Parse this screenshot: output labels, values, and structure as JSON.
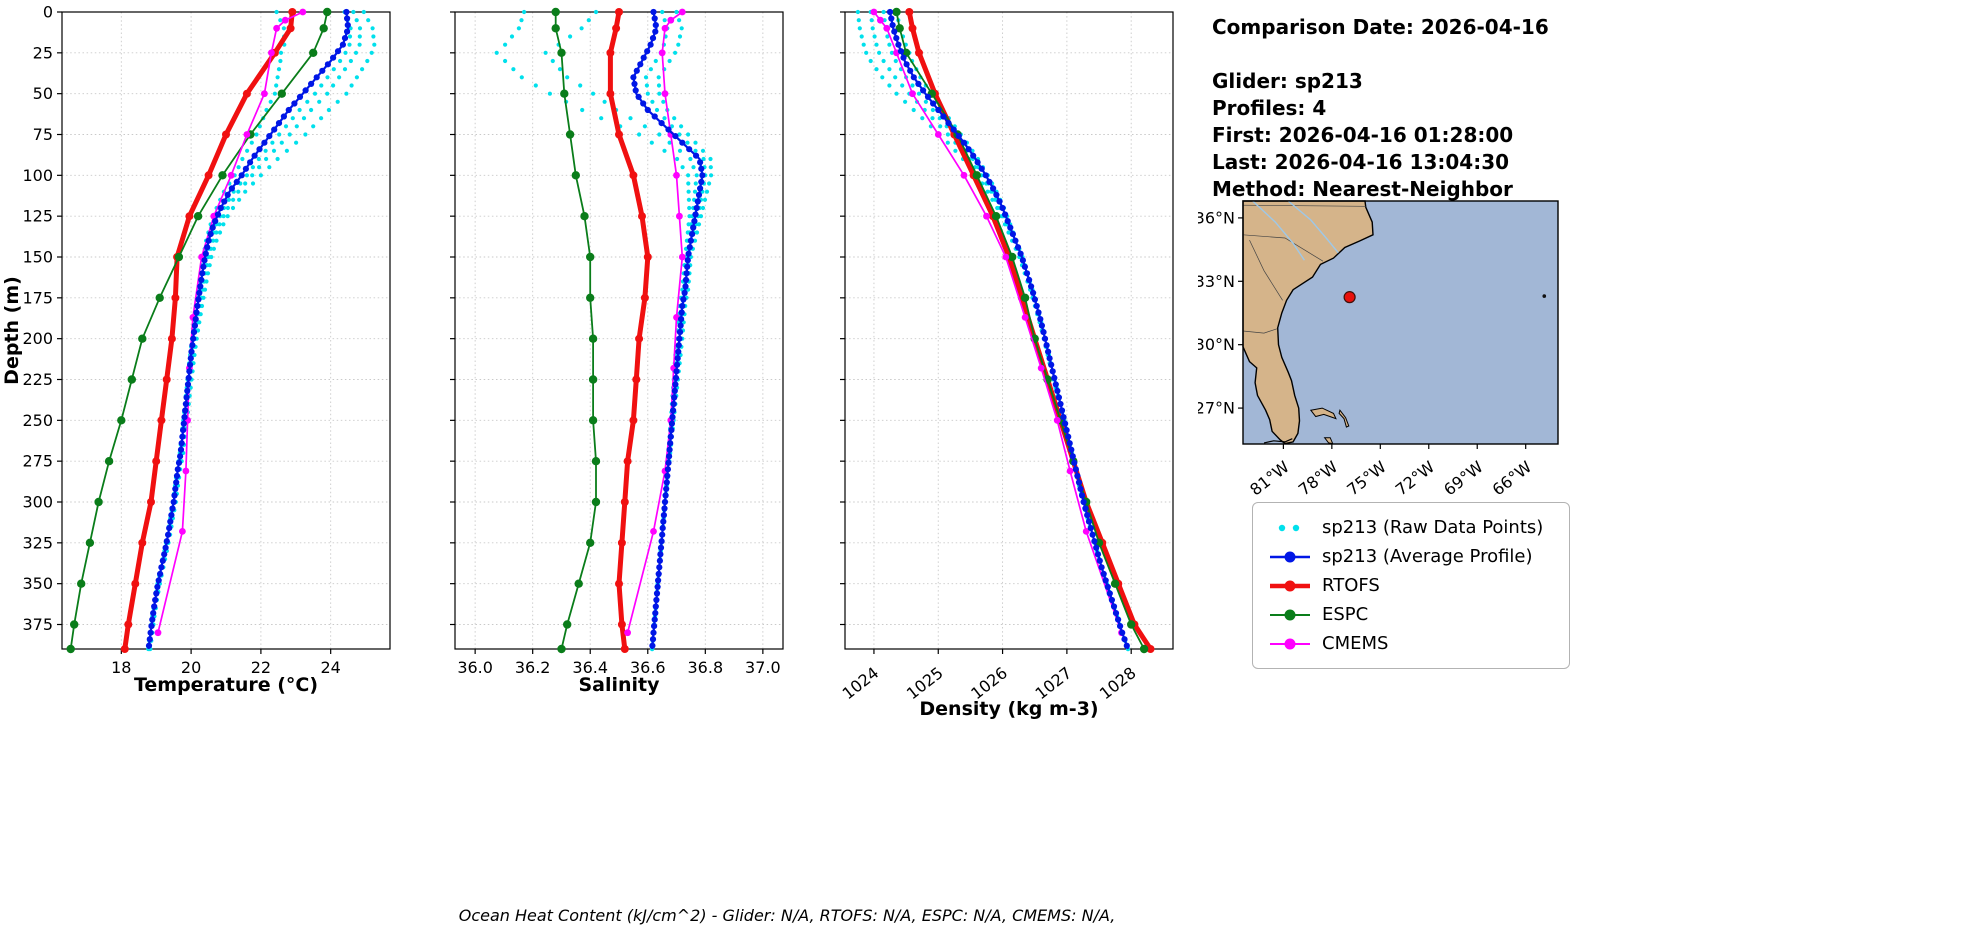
{
  "info": {
    "lines": [
      "Comparison Date: 2026-04-16",
      "Glider: sp213",
      "Profiles: 4",
      "First: 2026-04-16 01:28:00",
      "Last: 2026-04-16 13:04:30",
      "Method: Nearest-Neighbor"
    ]
  },
  "footer": {
    "ocean_heat_note": "Ocean Heat Content (kJ/cm^2) - Glider: N/A,  RTOFS: N/A,  ESPC: N/A,  CMEMS: N/A,"
  },
  "legend": {
    "items": [
      {
        "id": "raw",
        "label": "sp213 (Raw Data Points)",
        "color": "#00E0EC",
        "style": "dots"
      },
      {
        "id": "avg",
        "label": "sp213 (Average Profile)",
        "color": "#0016E6",
        "style": "line-dot",
        "lw": 2.5
      },
      {
        "id": "rtofs",
        "label": "RTOFS",
        "color": "#F01010",
        "style": "line-dot",
        "lw": 4.5
      },
      {
        "id": "espc",
        "label": "ESPC",
        "color": "#0A7D1A",
        "style": "line-dot",
        "lw": 2
      },
      {
        "id": "cmems",
        "label": "CMEMS",
        "color": "#FF00FF",
        "style": "line-dot",
        "lw": 2
      }
    ]
  },
  "chart_data": {
    "type": "line",
    "orientation": "vertical-profile",
    "depth_axis": {
      "label": "Depth (m)",
      "ticks": [
        0,
        25,
        50,
        75,
        100,
        125,
        150,
        175,
        200,
        225,
        250,
        275,
        300,
        325,
        350,
        375
      ],
      "lim": [
        0,
        390
      ]
    },
    "depth_grid": [
      0,
      10,
      20,
      30,
      40,
      50,
      60,
      70,
      80,
      90,
      100,
      110,
      120,
      130,
      140,
      150,
      160,
      170,
      180,
      190,
      200,
      210,
      220,
      230,
      240,
      250,
      260,
      270,
      280,
      290,
      300,
      310,
      320,
      330,
      340,
      350,
      360,
      370,
      380,
      390
    ],
    "model_depths": [
      0,
      10,
      25,
      50,
      75,
      100,
      125,
      150,
      175,
      200,
      225,
      250,
      275,
      300,
      325,
      350,
      375,
      390
    ],
    "cmems_depths": [
      0,
      5,
      10,
      25,
      50,
      75,
      100,
      125,
      150,
      187,
      218,
      250,
      281,
      318,
      380
    ],
    "raw_offset_depths": [
      0,
      25,
      50,
      75,
      100,
      125,
      150,
      200,
      300,
      390
    ],
    "plots": [
      {
        "id": "temperature",
        "xlabel": "Temperature (°C)",
        "xlim": [
          16.3,
          25.7
        ],
        "xticks": [
          18,
          20,
          22,
          24
        ],
        "xtick_labels": [
          "18",
          "20",
          "22",
          "24"
        ],
        "rotate_xtick_labels": false,
        "series": {
          "avg": {
            "depths": "grid",
            "values": [
              24.45,
              24.5,
              24.35,
              24.0,
              23.6,
              23.2,
              22.8,
              22.45,
              22.1,
              21.75,
              21.45,
              21.1,
              20.85,
              20.65,
              20.5,
              20.4,
              20.32,
              20.25,
              20.18,
              20.12,
              20.06,
              20.0,
              19.95,
              19.9,
              19.85,
              19.8,
              19.75,
              19.7,
              19.62,
              19.56,
              19.5,
              19.42,
              19.34,
              19.25,
              19.15,
              19.05,
              18.97,
              18.9,
              18.84,
              18.78
            ]
          },
          "rtofs": {
            "depths": "model",
            "values": [
              22.9,
              22.85,
              22.4,
              21.6,
              21.0,
              20.5,
              19.95,
              19.6,
              19.55,
              19.45,
              19.3,
              19.15,
              19.0,
              18.85,
              18.6,
              18.4,
              18.2,
              18.1
            ]
          },
          "espc": {
            "depths": "model",
            "values": [
              23.9,
              23.8,
              23.5,
              22.6,
              21.7,
              20.9,
              20.2,
              19.65,
              19.1,
              18.6,
              18.3,
              18.0,
              17.65,
              17.35,
              17.1,
              16.85,
              16.65,
              16.55
            ]
          },
          "cmems": {
            "depths": "cmems",
            "values": [
              23.2,
              22.7,
              22.45,
              22.3,
              22.1,
              21.6,
              21.15,
              20.65,
              20.3,
              20.05,
              19.95,
              19.9,
              19.85,
              19.75,
              19.05
            ]
          },
          "raw_offsets": [
            [
              0.5,
              1.0,
              1.25,
              1.0,
              0.55,
              0.3,
              0.18,
              0.1,
              0.06,
              0.05
            ],
            [
              0.2,
              0.55,
              0.7,
              0.55,
              0.3,
              0.18,
              0.1,
              0.06,
              0.04,
              0.03
            ],
            [
              -0.05,
              0.25,
              0.35,
              0.25,
              0.15,
              0.08,
              0.05,
              0.03,
              0.02,
              0.01
            ],
            [
              -2.0,
              -1.6,
              -0.8,
              -0.4,
              -0.2,
              -0.1,
              -0.05,
              -0.03,
              -0.02,
              -0.01
            ]
          ]
        }
      },
      {
        "id": "salinity",
        "xlabel": "Salinity",
        "xlim": [
          35.93,
          37.07
        ],
        "xticks": [
          36.0,
          36.2,
          36.4,
          36.6,
          36.8,
          37.0
        ],
        "xtick_labels": [
          "36.0",
          "36.2",
          "36.4",
          "36.6",
          "36.8",
          "37.0"
        ],
        "rotate_xtick_labels": false,
        "series": {
          "avg": {
            "depths": "grid",
            "values": [
              36.62,
              36.63,
              36.61,
              36.58,
              36.55,
              36.56,
              36.6,
              36.66,
              36.72,
              36.78,
              36.79,
              36.78,
              36.77,
              36.76,
              36.75,
              36.74,
              36.735,
              36.73,
              36.72,
              36.715,
              36.71,
              36.705,
              36.7,
              36.695,
              36.69,
              36.685,
              36.68,
              36.675,
              36.67,
              36.665,
              36.66,
              36.655,
              36.65,
              36.645,
              36.64,
              36.635,
              36.63,
              36.625,
              36.62,
              36.615
            ]
          },
          "rtofs": {
            "depths": "model",
            "values": [
              36.5,
              36.49,
              36.47,
              36.47,
              36.5,
              36.55,
              36.58,
              36.6,
              36.59,
              36.57,
              36.56,
              36.55,
              36.53,
              36.52,
              36.51,
              36.5,
              36.51,
              36.52
            ]
          },
          "espc": {
            "depths": "model",
            "values": [
              36.28,
              36.28,
              36.3,
              36.31,
              36.33,
              36.35,
              36.38,
              36.4,
              36.4,
              36.41,
              36.41,
              36.41,
              36.42,
              36.42,
              36.4,
              36.36,
              36.32,
              36.3
            ]
          },
          "cmems": {
            "depths": "cmems",
            "values": [
              36.72,
              36.68,
              36.66,
              36.65,
              36.66,
              36.68,
              36.7,
              36.71,
              36.72,
              36.7,
              36.69,
              36.68,
              36.66,
              36.62,
              36.53
            ]
          },
          "raw_offsets": [
            [
              0.08,
              0.1,
              0.08,
              0.05,
              0.03,
              0.02,
              0.01,
              0.01,
              0.0,
              0.0
            ],
            [
              0.03,
              0.05,
              0.04,
              0.02,
              0.01,
              0.01,
              0.0,
              0.0,
              0.0,
              0.0
            ],
            [
              -0.2,
              -0.35,
              -0.15,
              -0.05,
              -0.02,
              -0.01,
              -0.01,
              0.0,
              0.0,
              0.0
            ],
            [
              -0.45,
              -0.52,
              -0.3,
              -0.12,
              -0.05,
              -0.02,
              -0.01,
              -0.01,
              0.0,
              0.0
            ]
          ]
        }
      },
      {
        "id": "density",
        "xlabel": "Density (kg m-3)",
        "xlim": [
          1023.55,
          1028.65
        ],
        "xticks": [
          1024,
          1025,
          1026,
          1027,
          1028
        ],
        "xtick_labels": [
          "1024",
          "1025",
          "1026",
          "1027",
          "1028"
        ],
        "rotate_xtick_labels": true,
        "series": {
          "avg": {
            "depths": "grid",
            "values": [
              1024.25,
              1024.3,
              1024.38,
              1024.48,
              1024.62,
              1024.8,
              1025.0,
              1025.2,
              1025.4,
              1025.58,
              1025.74,
              1025.88,
              1026.0,
              1026.1,
              1026.2,
              1026.3,
              1026.38,
              1026.46,
              1026.53,
              1026.6,
              1026.66,
              1026.72,
              1026.78,
              1026.84,
              1026.9,
              1026.96,
              1027.02,
              1027.08,
              1027.14,
              1027.2,
              1027.26,
              1027.33,
              1027.4,
              1027.47,
              1027.54,
              1027.62,
              1027.7,
              1027.78,
              1027.86,
              1027.95
            ]
          },
          "rtofs": {
            "depths": "model",
            "values": [
              1024.55,
              1024.6,
              1024.7,
              1024.95,
              1025.25,
              1025.55,
              1025.85,
              1026.1,
              1026.3,
              1026.5,
              1026.7,
              1026.9,
              1027.1,
              1027.3,
              1027.55,
              1027.8,
              1028.05,
              1028.3
            ]
          },
          "espc": {
            "depths": "model",
            "values": [
              1024.35,
              1024.4,
              1024.5,
              1024.9,
              1025.3,
              1025.6,
              1025.9,
              1026.15,
              1026.35,
              1026.5,
              1026.7,
              1026.9,
              1027.1,
              1027.3,
              1027.5,
              1027.75,
              1028.0,
              1028.2
            ]
          },
          "cmems": {
            "depths": "cmems",
            "values": [
              1024.0,
              1024.1,
              1024.2,
              1024.35,
              1024.6,
              1025.0,
              1025.4,
              1025.75,
              1026.05,
              1026.35,
              1026.6,
              1026.85,
              1027.05,
              1027.3,
              1027.85
            ]
          },
          "raw_offsets": [
            [
              -0.5,
              -0.55,
              -0.45,
              -0.28,
              -0.14,
              -0.07,
              -0.04,
              -0.02,
              -0.01,
              0.0
            ],
            [
              -0.3,
              -0.35,
              -0.25,
              -0.15,
              -0.07,
              -0.04,
              -0.02,
              -0.01,
              0.0,
              0.0
            ],
            [
              -0.1,
              -0.15,
              -0.1,
              -0.06,
              -0.03,
              -0.02,
              -0.01,
              0.0,
              0.0,
              0.0
            ],
            [
              0.1,
              0.12,
              0.09,
              0.05,
              0.03,
              0.02,
              0.01,
              0.0,
              0.0,
              0.0
            ]
          ]
        }
      }
    ]
  },
  "map": {
    "lat_ticks": [
      36,
      33,
      30,
      27
    ],
    "lat_tick_labels": [
      "36°N",
      "33°N",
      "30°N",
      "27°N"
    ],
    "lon_ticks": [
      -81,
      -78,
      -75,
      -72,
      -69,
      -66
    ],
    "lon_tick_labels": [
      "81°W",
      "78°W",
      "75°W",
      "72°W",
      "69°W",
      "66°W"
    ],
    "extent": {
      "lon_min": -83.5,
      "lon_max": -64.0,
      "lat_min": 25.3,
      "lat_max": 36.8
    },
    "glider_marker": {
      "lon": -76.9,
      "lat": 32.25,
      "color": "#E8100C"
    },
    "colors": {
      "land": "#D5B48A",
      "ocean": "#A2B7D6",
      "water_detail": "#9EC8E8",
      "coastline": "#000000"
    }
  }
}
